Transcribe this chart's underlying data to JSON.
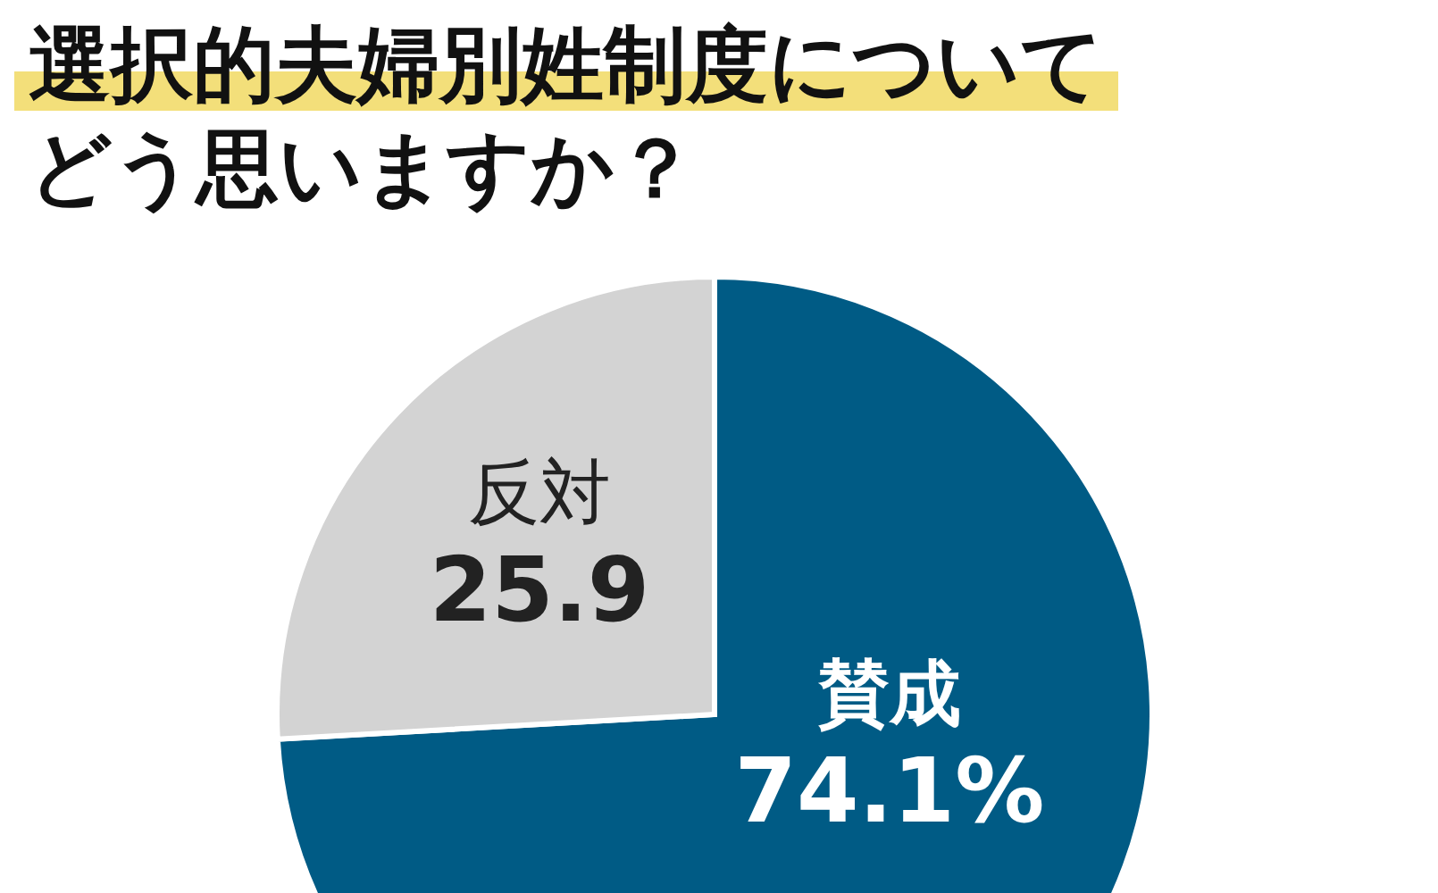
{
  "chart_data": {
    "type": "pie",
    "title": "選択的夫婦別姓制度についてどう思いますか？",
    "categories": [
      "賛成",
      "反対"
    ],
    "values": [
      74.1,
      25.9
    ],
    "colors": [
      "#005b85",
      "#d3d3d3"
    ],
    "value_labels": [
      "74.1%",
      "25.9"
    ]
  }
}
